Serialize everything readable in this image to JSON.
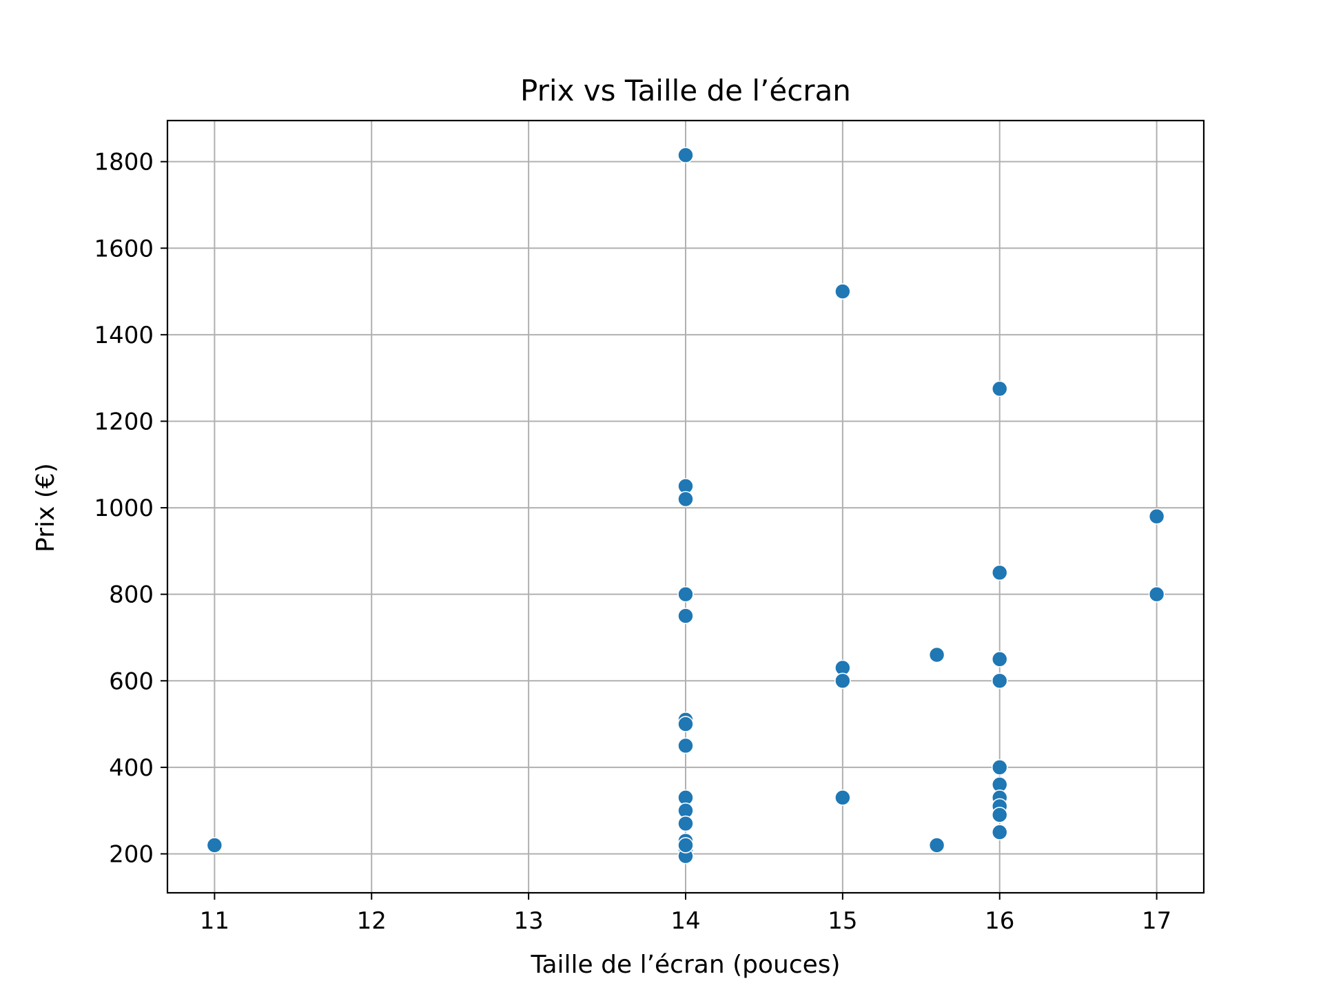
{
  "chart_data": {
    "type": "scatter",
    "title": "Prix vs Taille de l’écran",
    "xlabel": "Taille de l’écran (pouces)",
    "ylabel": "Prix (€)",
    "xlim": [
      10.7,
      17.3
    ],
    "ylim": [
      110,
      1895
    ],
    "xticks": [
      11,
      12,
      13,
      14,
      15,
      16,
      17
    ],
    "yticks": [
      200,
      400,
      600,
      800,
      1000,
      1200,
      1400,
      1600,
      1800
    ],
    "grid": true,
    "marker_color": "#1f77b4",
    "points": [
      {
        "x": 11,
        "y": 220
      },
      {
        "x": 14,
        "y": 1815
      },
      {
        "x": 14,
        "y": 1050
      },
      {
        "x": 14,
        "y": 1020
      },
      {
        "x": 14,
        "y": 800
      },
      {
        "x": 14,
        "y": 750
      },
      {
        "x": 14,
        "y": 510
      },
      {
        "x": 14,
        "y": 500
      },
      {
        "x": 14,
        "y": 450
      },
      {
        "x": 14,
        "y": 330
      },
      {
        "x": 14,
        "y": 300
      },
      {
        "x": 14,
        "y": 270
      },
      {
        "x": 14,
        "y": 230
      },
      {
        "x": 14,
        "y": 210
      },
      {
        "x": 14,
        "y": 195
      },
      {
        "x": 14,
        "y": 220
      },
      {
        "x": 15,
        "y": 1500
      },
      {
        "x": 15,
        "y": 630
      },
      {
        "x": 15,
        "y": 600
      },
      {
        "x": 15,
        "y": 330
      },
      {
        "x": 15.6,
        "y": 660
      },
      {
        "x": 15.6,
        "y": 220
      },
      {
        "x": 16,
        "y": 1275
      },
      {
        "x": 16,
        "y": 850
      },
      {
        "x": 16,
        "y": 650
      },
      {
        "x": 16,
        "y": 600
      },
      {
        "x": 16,
        "y": 400
      },
      {
        "x": 16,
        "y": 360
      },
      {
        "x": 16,
        "y": 330
      },
      {
        "x": 16,
        "y": 310
      },
      {
        "x": 16,
        "y": 290
      },
      {
        "x": 16,
        "y": 250
      },
      {
        "x": 17,
        "y": 980
      },
      {
        "x": 17,
        "y": 800
      }
    ]
  }
}
